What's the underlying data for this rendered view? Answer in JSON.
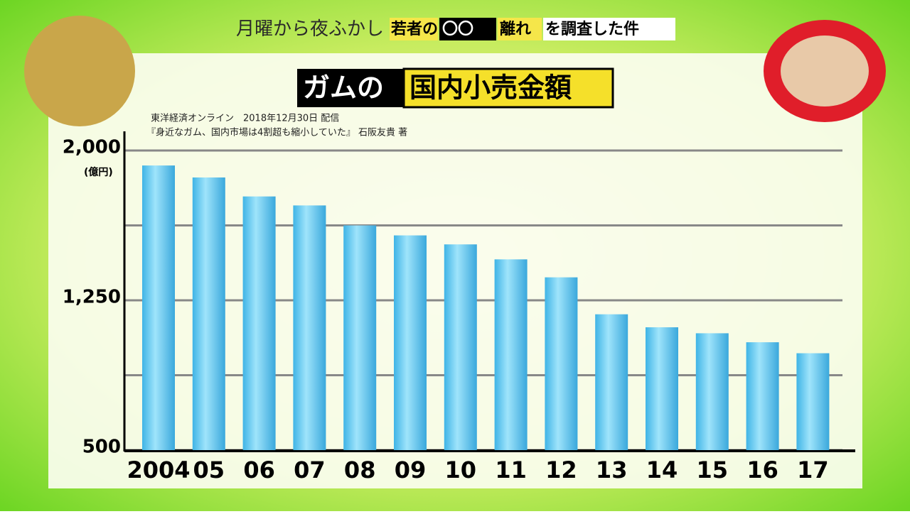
{
  "header": {
    "show_title": "月曜から夜ふかし",
    "segment": [
      "若者の",
      "〇〇",
      "離れ",
      "を調査した件"
    ]
  },
  "chart_data": {
    "type": "bar",
    "title_parts": [
      "ガムの",
      "国内小売金額"
    ],
    "source": [
      "東洋経済オンライン　2018年12月30日 配信",
      "『身近なガム、国内市場は4割超も縮小していた』 石阪友貴 著"
    ],
    "y_unit": "(億円)",
    "categories": [
      "2004",
      "05",
      "06",
      "07",
      "08",
      "09",
      "10",
      "11",
      "12",
      "13",
      "14",
      "15",
      "16",
      "17"
    ],
    "values": [
      1925,
      1865,
      1770,
      1725,
      1625,
      1575,
      1530,
      1455,
      1365,
      1180,
      1115,
      1085,
      1040,
      985
    ],
    "color": "#5cc8f0",
    "ylim": [
      500,
      2000
    ],
    "yticks": [
      {
        "value": 500,
        "label": "500"
      },
      {
        "value": 875,
        "label": null
      },
      {
        "value": 1250,
        "label": "1,250"
      },
      {
        "value": 1625,
        "label": null
      },
      {
        "value": 2000,
        "label": "2,000"
      }
    ],
    "grid": true
  }
}
